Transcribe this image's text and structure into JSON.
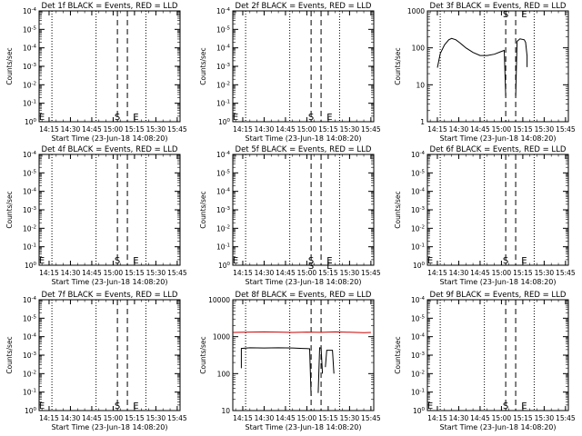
{
  "colors": {
    "events": "#000000",
    "lld": "#cc0000",
    "background": "#ffffff"
  },
  "x_ticks": [
    "14:15",
    "14:30",
    "14:45",
    "15:00",
    "15:15",
    "15:30",
    "15:45"
  ],
  "xlabel": "Start Time (23-Jun-18 14:08:20)",
  "ylabel": "Counts/sec",
  "markers": {
    "start": "S",
    "end": "E"
  },
  "chart_data": [
    {
      "type": "line",
      "title": "Det 1f BLACK = Events, RED = LLD",
      "ylog": true,
      "ylim_exp": [
        0,
        4
      ],
      "ytick_labels": [
        "10^0",
        "10^-1",
        "10^-2",
        "10^-3",
        "10^-4",
        "10^-5",
        "10^-4"
      ],
      "xlim": [
        "14:08",
        "15:47"
      ],
      "dotted_lines": [
        "14:17",
        "14:48",
        "15:23"
      ],
      "dashed_lines": [
        "15:03",
        "15:10"
      ],
      "S_at": "15:03",
      "E_at": "15:16",
      "S_y": 0.2,
      "E_y": 0.2,
      "series": []
    },
    {
      "type": "line",
      "title": "Det 2f BLACK = Events, RED = LLD",
      "ylog": true,
      "ylim_exp": [
        0,
        4
      ],
      "ytick_labels": [
        "10^0",
        "10^-1",
        "10^-2",
        "10^-3",
        "10^-4",
        "10^-5",
        "10^-4"
      ],
      "xlim": [
        "14:08",
        "15:47"
      ],
      "dotted_lines": [
        "14:17",
        "14:48",
        "15:23"
      ],
      "dashed_lines": [
        "15:03",
        "15:10"
      ],
      "S_at": "15:03",
      "E_at": "15:16",
      "S_y": 0.2,
      "E_y": 0.2,
      "series": []
    },
    {
      "type": "line",
      "title": "Det 3f BLACK = Events, RED = LLD",
      "ylog": true,
      "ylim_exp": [
        0,
        3
      ],
      "ytick_labels": [
        "1",
        "10",
        "100",
        "1000"
      ],
      "xlim": [
        "14:08",
        "15:47"
      ],
      "dotted_lines": [
        "14:17",
        "14:48",
        "15:23"
      ],
      "dashed_lines": [
        "15:03",
        "15:10"
      ],
      "S_at": "15:03",
      "E_at": "15:16",
      "S_y": 2.93,
      "E_y": 2.93,
      "series": [
        {
          "color": "#000000",
          "segments": [
            [
              [
                "14:15",
                29
              ],
              [
                "14:17",
                70
              ],
              [
                "14:20",
                120
              ],
              [
                "14:23",
                165
              ],
              [
                "14:25",
                180
              ],
              [
                "14:28",
                165
              ],
              [
                "14:31",
                135
              ],
              [
                "14:35",
                100
              ],
              [
                "14:40",
                75
              ],
              [
                "14:45",
                62
              ],
              [
                "14:50",
                62
              ],
              [
                "14:55",
                67
              ],
              [
                "15:00",
                80
              ],
              [
                "15:02",
                85
              ],
              [
                "15:03",
                5
              ]
            ],
            [
              [
                "15:10",
                5
              ],
              [
                "15:11",
                150
              ],
              [
                "15:13",
                175
              ],
              [
                "15:16",
                165
              ],
              [
                "15:17",
                140
              ],
              [
                "15:18",
                60
              ],
              [
                "15:18",
                30
              ]
            ]
          ]
        }
      ]
    },
    {
      "type": "line",
      "title": "Det 4f BLACK = Events, RED = LLD",
      "ylog": true,
      "ylim_exp": [
        0,
        4
      ],
      "ytick_labels": [
        "10^0",
        "10^-1",
        "10^-2",
        "10^-3",
        "10^-4",
        "10^-5",
        "10^-4"
      ],
      "xlim": [
        "14:08",
        "15:47"
      ],
      "dotted_lines": [
        "14:17",
        "14:48",
        "15:23"
      ],
      "dashed_lines": [
        "15:03",
        "15:10"
      ],
      "S_at": "15:03",
      "E_at": "15:16",
      "S_y": 0.2,
      "E_y": 0.2,
      "series": []
    },
    {
      "type": "line",
      "title": "Det 5f BLACK = Events, RED = LLD",
      "ylog": true,
      "ylim_exp": [
        0,
        4
      ],
      "ytick_labels": [
        "10^0",
        "10^-1",
        "10^-2",
        "10^-3",
        "10^-4",
        "10^-5",
        "10^-4"
      ],
      "xlim": [
        "14:08",
        "15:47"
      ],
      "dotted_lines": [
        "14:17",
        "14:48",
        "15:23"
      ],
      "dashed_lines": [
        "15:03",
        "15:10"
      ],
      "S_at": "15:03",
      "E_at": "15:16",
      "S_y": 0.2,
      "E_y": 0.2,
      "series": []
    },
    {
      "type": "line",
      "title": "Det 6f BLACK = Events, RED = LLD",
      "ylog": true,
      "ylim_exp": [
        0,
        4
      ],
      "ytick_labels": [
        "10^0",
        "10^-1",
        "10^-2",
        "10^-3",
        "10^-4",
        "10^-5",
        "10^-4"
      ],
      "xlim": [
        "14:08",
        "15:47"
      ],
      "dotted_lines": [
        "14:17",
        "14:48",
        "15:23"
      ],
      "dashed_lines": [
        "15:03",
        "15:10"
      ],
      "S_at": "15:03",
      "E_at": "15:16",
      "S_y": 0.2,
      "E_y": 0.2,
      "series": []
    },
    {
      "type": "line",
      "title": "Det 7f BLACK = Events, RED = LLD",
      "ylog": true,
      "ylim_exp": [
        0,
        4
      ],
      "ytick_labels": [
        "10^0",
        "10^-1",
        "10^-2",
        "10^-3",
        "10^-4",
        "10^-5",
        "10^-4"
      ],
      "xlim": [
        "14:08",
        "15:47"
      ],
      "dotted_lines": [
        "14:17",
        "14:48",
        "15:23"
      ],
      "dashed_lines": [
        "15:03",
        "15:10"
      ],
      "S_at": "15:03",
      "E_at": "15:16",
      "S_y": 0.2,
      "E_y": 0.2,
      "series": []
    },
    {
      "type": "line",
      "title": "Det 8f BLACK = Events, RED = LLD",
      "ylog": true,
      "ylim_exp": [
        1,
        4
      ],
      "ytick_labels": [
        "10",
        "100",
        "1000",
        "10000"
      ],
      "xlim": [
        "14:08",
        "15:47"
      ],
      "dotted_lines": [
        "14:17",
        "14:48",
        "15:23"
      ],
      "dashed_lines": [
        "15:03",
        "15:10"
      ],
      "S_at": "15:03",
      "E_at": "15:16",
      "S_y": 3.93,
      "E_y": 3.93,
      "series": [
        {
          "color": "#cc0000",
          "segments": [
            [
              [
                "14:08",
                1300
              ],
              [
                "14:20",
                1330
              ],
              [
                "14:30",
                1350
              ],
              [
                "14:40",
                1330
              ],
              [
                "14:50",
                1300
              ],
              [
                "15:00",
                1330
              ],
              [
                "15:10",
                1310
              ],
              [
                "15:20",
                1350
              ],
              [
                "15:30",
                1320
              ],
              [
                "15:40",
                1280
              ],
              [
                "15:45",
                1300
              ]
            ]
          ]
        },
        {
          "color": "#000000",
          "segments": [
            [
              [
                "14:14",
                140
              ],
              [
                "14:14",
                480
              ],
              [
                "14:20",
                500
              ],
              [
                "14:30",
                495
              ],
              [
                "14:40",
                500
              ],
              [
                "14:50",
                495
              ],
              [
                "14:57",
                480
              ],
              [
                "15:00",
                475
              ],
              [
                "15:02",
                470
              ],
              [
                "15:03",
                25
              ]
            ],
            [
              [
                "15:08",
                30
              ],
              [
                "15:09",
                500
              ],
              [
                "15:10",
                490
              ],
              [
                "15:11",
                100
              ]
            ],
            [
              [
                "15:13",
                150
              ],
              [
                "15:14",
                430
              ],
              [
                "15:18",
                430
              ],
              [
                "15:19",
                100
              ]
            ]
          ]
        }
      ]
    },
    {
      "type": "line",
      "title": "Det 9f BLACK = Events, RED = LLD",
      "ylog": true,
      "ylim_exp": [
        0,
        4
      ],
      "ytick_labels": [
        "10^0",
        "10^-1",
        "10^-2",
        "10^-3",
        "10^-4",
        "10^-5",
        "10^-4"
      ],
      "xlim": [
        "14:08",
        "15:47"
      ],
      "dotted_lines": [
        "14:17",
        "14:48",
        "15:23"
      ],
      "dashed_lines": [
        "15:03",
        "15:10"
      ],
      "S_at": "15:03",
      "E_at": "15:16",
      "S_y": 0.2,
      "E_y": 0.2,
      "series": []
    }
  ]
}
